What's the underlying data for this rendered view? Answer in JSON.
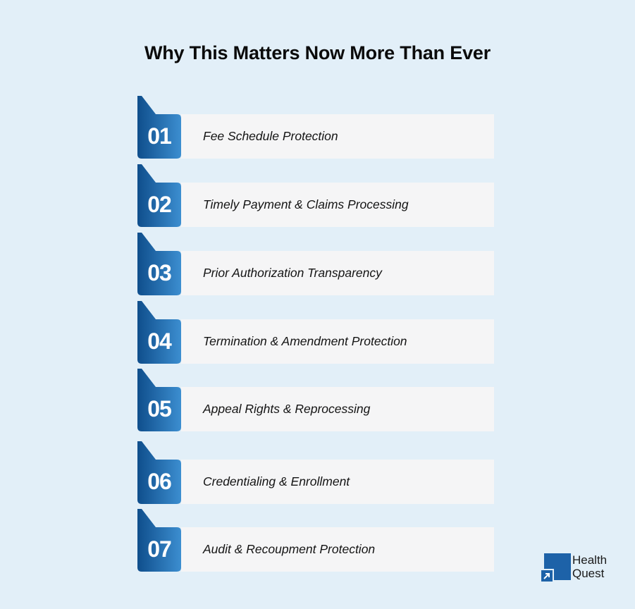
{
  "title": "Why This Matters Now More Than Ever",
  "items": [
    {
      "number": "01",
      "label": "Fee Schedule Protection"
    },
    {
      "number": "02",
      "label": "Timely Payment & Claims Processing"
    },
    {
      "number": "03",
      "label": "Prior Authorization Transparency"
    },
    {
      "number": "04",
      "label": "Termination & Amendment Protection"
    },
    {
      "number": "05",
      "label": "Appeal Rights & Reprocessing"
    },
    {
      "number": "06",
      "label": "Credentialing & Enrollment"
    },
    {
      "number": "07",
      "label": "Audit & Recoupment Protection"
    }
  ],
  "logo": {
    "line1": "Health",
    "line2": "Quest"
  },
  "colors": {
    "badge_dark": "#0f4e8c",
    "badge_light": "#3c8ed0",
    "background": "#e2eff8",
    "bar": "#f5f5f6"
  }
}
